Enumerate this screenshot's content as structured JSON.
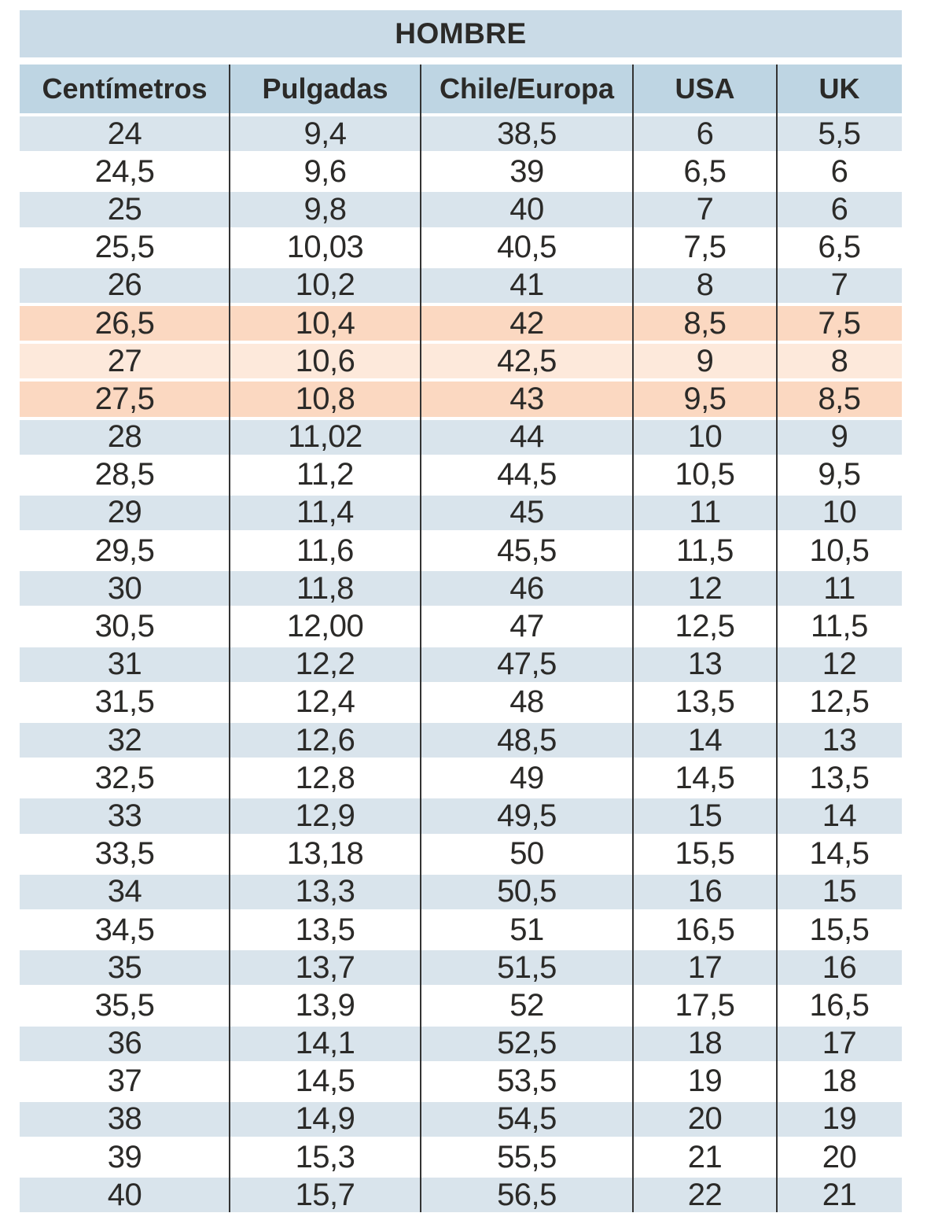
{
  "table": {
    "title": "HOMBRE",
    "columns": [
      "Centímetros",
      "Pulgadas",
      "Chile/Europa",
      "USA",
      "UK"
    ],
    "rows": [
      {
        "tone": "blue",
        "cells": [
          "24",
          "9,4",
          "38,5",
          "6",
          "5,5"
        ]
      },
      {
        "tone": "white",
        "cells": [
          "24,5",
          "9,6",
          "39",
          "6,5",
          "6"
        ]
      },
      {
        "tone": "blue",
        "cells": [
          "25",
          "9,8",
          "40",
          "7",
          "6"
        ]
      },
      {
        "tone": "white",
        "cells": [
          "25,5",
          "10,03",
          "40,5",
          "7,5",
          "6,5"
        ]
      },
      {
        "tone": "blue",
        "cells": [
          "26",
          "10,2",
          "41",
          "8",
          "7"
        ]
      },
      {
        "tone": "orange",
        "cells": [
          "26,5",
          "10,4",
          "42",
          "8,5",
          "7,5"
        ]
      },
      {
        "tone": "orange-light",
        "cells": [
          "27",
          "10,6",
          "42,5",
          "9",
          "8"
        ]
      },
      {
        "tone": "orange",
        "cells": [
          "27,5",
          "10,8",
          "43",
          "9,5",
          "8,5"
        ]
      },
      {
        "tone": "blue",
        "cells": [
          "28",
          "11,02",
          "44",
          "10",
          "9"
        ]
      },
      {
        "tone": "white",
        "cells": [
          "28,5",
          "11,2",
          "44,5",
          "10,5",
          "9,5"
        ]
      },
      {
        "tone": "blue",
        "cells": [
          "29",
          "11,4",
          "45",
          "11",
          "10"
        ]
      },
      {
        "tone": "white",
        "cells": [
          "29,5",
          "11,6",
          "45,5",
          "11,5",
          "10,5"
        ]
      },
      {
        "tone": "blue",
        "cells": [
          "30",
          "11,8",
          "46",
          "12",
          "11"
        ]
      },
      {
        "tone": "white",
        "cells": [
          "30,5",
          "12,00",
          "47",
          "12,5",
          "11,5"
        ]
      },
      {
        "tone": "blue",
        "cells": [
          "31",
          "12,2",
          "47,5",
          "13",
          "12"
        ]
      },
      {
        "tone": "white",
        "cells": [
          "31,5",
          "12,4",
          "48",
          "13,5",
          "12,5"
        ]
      },
      {
        "tone": "blue",
        "cells": [
          "32",
          "12,6",
          "48,5",
          "14",
          "13"
        ]
      },
      {
        "tone": "white",
        "cells": [
          "32,5",
          "12,8",
          "49",
          "14,5",
          "13,5"
        ]
      },
      {
        "tone": "blue",
        "cells": [
          "33",
          "12,9",
          "49,5",
          "15",
          "14"
        ]
      },
      {
        "tone": "white",
        "cells": [
          "33,5",
          "13,18",
          "50",
          "15,5",
          "14,5"
        ]
      },
      {
        "tone": "blue",
        "cells": [
          "34",
          "13,3",
          "50,5",
          "16",
          "15"
        ]
      },
      {
        "tone": "white",
        "cells": [
          "34,5",
          "13,5",
          "51",
          "16,5",
          "15,5"
        ]
      },
      {
        "tone": "blue",
        "cells": [
          "35",
          "13,7",
          "51,5",
          "17",
          "16"
        ]
      },
      {
        "tone": "white",
        "cells": [
          "35,5",
          "13,9",
          "52",
          "17,5",
          "16,5"
        ]
      },
      {
        "tone": "blue",
        "cells": [
          "36",
          "14,1",
          "52,5",
          "18",
          "17"
        ]
      },
      {
        "tone": "white",
        "cells": [
          "37",
          "14,5",
          "53,5",
          "19",
          "18"
        ]
      },
      {
        "tone": "blue",
        "cells": [
          "38",
          "14,9",
          "54,5",
          "20",
          "19"
        ]
      },
      {
        "tone": "white",
        "cells": [
          "39",
          "15,3",
          "55,5",
          "21",
          "20"
        ]
      },
      {
        "tone": "blue",
        "cells": [
          "40",
          "15,7",
          "56,5",
          "22",
          "21"
        ]
      }
    ]
  },
  "colors": {
    "title_band": "#cadbe7",
    "header_band": "#bed5e3",
    "row_blue": "#d9e4ec",
    "row_white": "#ffffff",
    "row_orange": "#fbd8c1",
    "row_orange_light": "#fde9db",
    "divider": "#333333",
    "text": "#2b2a28"
  }
}
